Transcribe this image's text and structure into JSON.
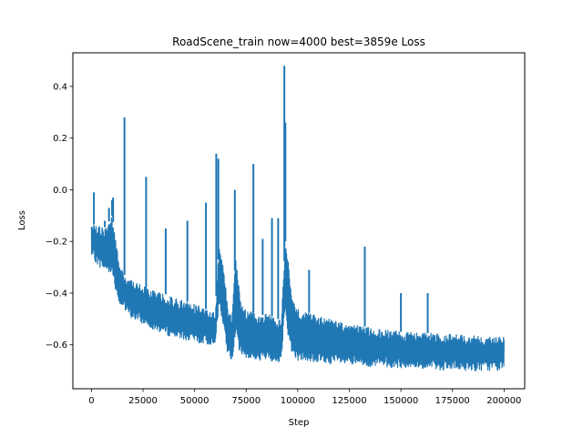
{
  "chart_data": {
    "type": "line",
    "title": "RoadScene_train now=4000 best=3859e Loss",
    "xlabel": "Step",
    "ylabel": "Loss",
    "xlim": [
      -9000,
      210000
    ],
    "ylim": [
      -0.77,
      0.53
    ],
    "grid": false,
    "color": "#1f77b4",
    "xticks": [
      0,
      25000,
      50000,
      75000,
      100000,
      125000,
      150000,
      175000,
      200000
    ],
    "xtick_labels": [
      "0",
      "25000",
      "50000",
      "75000",
      "100000",
      "125000",
      "150000",
      "175000",
      "200000"
    ],
    "yticks": [
      0.4,
      0.2,
      0.0,
      -0.2,
      -0.4,
      -0.6
    ],
    "ytick_labels": [
      "0.4",
      "0.2",
      "0.0",
      "−0.2",
      "−0.4",
      "−0.6"
    ],
    "series": [
      {
        "x": [
          0,
          2000,
          4000,
          6000,
          8000,
          10000,
          12000,
          14000,
          16000,
          18000,
          20000,
          25000,
          30000,
          35000,
          40000,
          45000,
          50000,
          55000,
          58000,
          60000,
          62000,
          65000,
          66000,
          68000,
          70000,
          72000,
          75000,
          78000,
          80000,
          85000,
          90000,
          92000,
          94000,
          95000,
          97000,
          100000,
          110000,
          125000,
          150000,
          175000,
          200000
        ],
        "y_upper": [
          -0.12,
          -0.14,
          -0.14,
          -0.15,
          -0.13,
          -0.1,
          -0.2,
          -0.3,
          -0.33,
          -0.34,
          -0.35,
          -0.37,
          -0.39,
          -0.4,
          -0.42,
          -0.43,
          -0.44,
          -0.46,
          -0.47,
          -0.48,
          -0.2,
          -0.35,
          -0.45,
          -0.5,
          -0.25,
          -0.42,
          -0.47,
          -0.47,
          -0.49,
          -0.48,
          -0.5,
          -0.5,
          -0.2,
          -0.25,
          -0.4,
          -0.46,
          -0.49,
          -0.52,
          -0.55,
          -0.56,
          -0.57
        ],
        "y_lower": [
          -0.26,
          -0.28,
          -0.3,
          -0.31,
          -0.32,
          -0.32,
          -0.4,
          -0.45,
          -0.47,
          -0.49,
          -0.5,
          -0.52,
          -0.54,
          -0.56,
          -0.57,
          -0.58,
          -0.59,
          -0.6,
          -0.6,
          -0.59,
          -0.45,
          -0.58,
          -0.64,
          -0.67,
          -0.55,
          -0.64,
          -0.65,
          -0.66,
          -0.66,
          -0.66,
          -0.67,
          -0.66,
          -0.45,
          -0.55,
          -0.63,
          -0.66,
          -0.67,
          -0.68,
          -0.69,
          -0.7,
          -0.7
        ],
        "spikes": [
          {
            "x": 1200,
            "y": -0.01
          },
          {
            "x": 6500,
            "y": -0.12
          },
          {
            "x": 8500,
            "y": -0.07
          },
          {
            "x": 10000,
            "y": -0.04
          },
          {
            "x": 10500,
            "y": -0.03
          },
          {
            "x": 16000,
            "y": 0.28
          },
          {
            "x": 26500,
            "y": 0.05
          },
          {
            "x": 36000,
            "y": -0.15
          },
          {
            "x": 46500,
            "y": -0.12
          },
          {
            "x": 55500,
            "y": -0.05
          },
          {
            "x": 60500,
            "y": 0.14
          },
          {
            "x": 61500,
            "y": 0.12
          },
          {
            "x": 69500,
            "y": 0.0
          },
          {
            "x": 78500,
            "y": 0.1
          },
          {
            "x": 83000,
            "y": -0.19
          },
          {
            "x": 87500,
            "y": -0.11
          },
          {
            "x": 90500,
            "y": -0.11
          },
          {
            "x": 93500,
            "y": 0.48
          },
          {
            "x": 94000,
            "y": 0.26
          },
          {
            "x": 105500,
            "y": -0.31
          },
          {
            "x": 132500,
            "y": -0.22
          },
          {
            "x": 150000,
            "y": -0.4
          },
          {
            "x": 163000,
            "y": -0.4
          }
        ]
      }
    ]
  }
}
